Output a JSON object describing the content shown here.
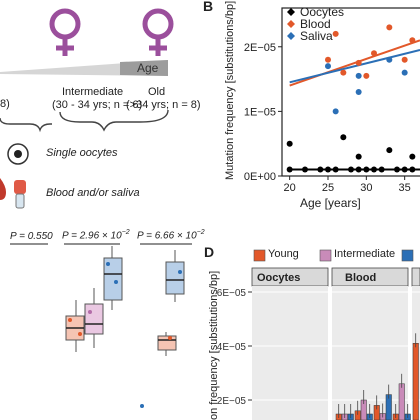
{
  "panel_a": {
    "age_label": "Age",
    "groups": [
      {
        "name": "8)",
        "range": ""
      },
      {
        "name": "Intermediate",
        "range": "(30 - 34 yrs; n = 6)"
      },
      {
        "name": "Old",
        "range": "(>34 yrs; n = 8)"
      }
    ],
    "legend": [
      "Single oocytes",
      "Blood and/or saliva"
    ]
  },
  "panel_b": {
    "letter": "B",
    "chart_data": {
      "type": "scatter",
      "xlabel": "Age [years]",
      "ylabel": "Mutation frequency [substitutions/bp]",
      "xlim": [
        19,
        37
      ],
      "ylim": [
        0,
        2.6e-05
      ],
      "xticks": [
        "20",
        "25",
        "30",
        "35"
      ],
      "yticks": [
        "0E+00",
        "1E−05",
        "2E−05"
      ],
      "series": [
        {
          "name": "Oocytes",
          "color": "#000000",
          "points": [
            [
              20,
              1e-06
            ],
            [
              20,
              5e-06
            ],
            [
              22,
              1e-06
            ],
            [
              24,
              1e-06
            ],
            [
              25,
              1e-06
            ],
            [
              26,
              1e-06
            ],
            [
              27,
              6e-06
            ],
            [
              28,
              1e-06
            ],
            [
              29,
              1e-06
            ],
            [
              29,
              3e-06
            ],
            [
              30,
              1e-06
            ],
            [
              31,
              1e-06
            ],
            [
              32,
              1e-06
            ],
            [
              33,
              4e-06
            ],
            [
              34,
              1e-06
            ],
            [
              35,
              1e-06
            ],
            [
              36,
              1e-06
            ],
            [
              36,
              3e-06
            ]
          ]
        },
        {
          "name": "Blood",
          "color": "#e2582a",
          "points": [
            [
              25,
              1.8e-05
            ],
            [
              26,
              2.2e-05
            ],
            [
              27,
              1.6e-05
            ],
            [
              29,
              1.75e-05
            ],
            [
              30,
              1.55e-05
            ],
            [
              31,
              1.9e-05
            ],
            [
              33,
              2.3e-05
            ],
            [
              35,
              1.8e-05
            ],
            [
              36,
              2.1e-05
            ]
          ],
          "fit": [
            [
              20,
              1.4e-05
            ],
            [
              37,
              2.1e-05
            ]
          ]
        },
        {
          "name": "Saliva",
          "color": "#2b6fb6",
          "points": [
            [
              25,
              1.7e-05
            ],
            [
              26,
              1e-05
            ],
            [
              29,
              1.55e-05
            ],
            [
              29,
              1.3e-05
            ],
            [
              33,
              1.8e-05
            ],
            [
              35,
              1.6e-05
            ]
          ],
          "fit": [
            [
              20,
              1.45e-05
            ],
            [
              37,
              1.95e-05
            ]
          ]
        }
      ]
    }
  },
  "panel_c": {
    "pvalues": [
      "P = 0.550",
      "P = 2.96 × 10",
      "P = 6.66 × 10"
    ],
    "pexp": [
      "",
      "−2",
      "−2"
    ]
  },
  "panel_d": {
    "letter": "D",
    "legend": [
      {
        "name": "Young",
        "color": "#e2582a"
      },
      {
        "name": "Intermediate",
        "color": "#c98bb9"
      },
      {
        "name": "",
        "color": "#2b6fb6"
      }
    ],
    "facets": [
      "Oocytes",
      "Blood"
    ],
    "ylabel": "on frequency [substitutions/bp]",
    "yticks": [
      "6E−05",
      "4E−05",
      "2E−05"
    ]
  }
}
